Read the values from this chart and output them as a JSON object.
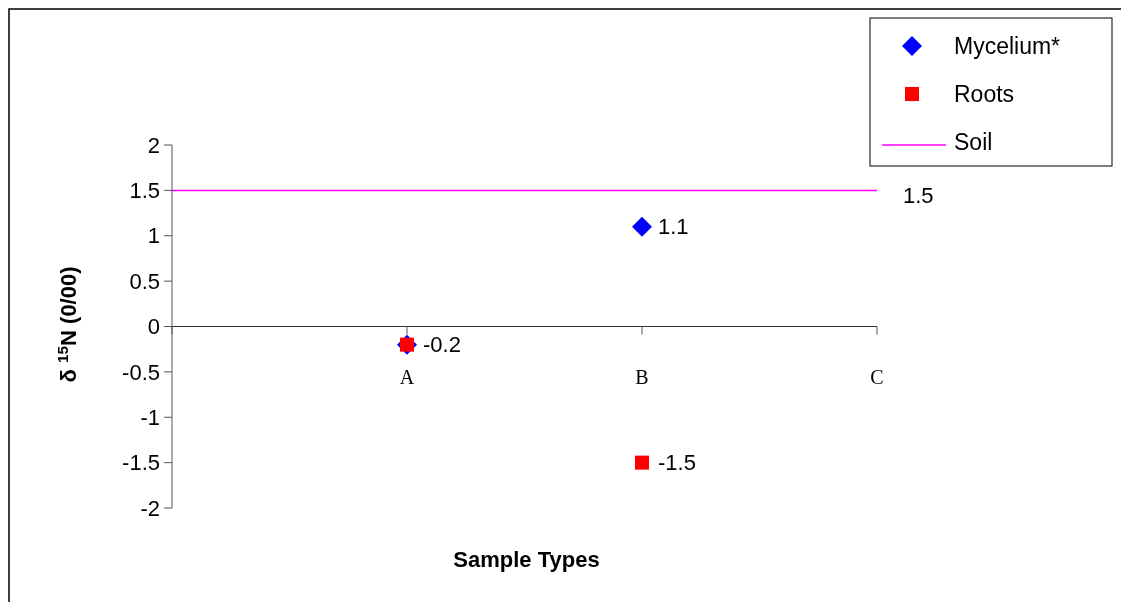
{
  "chart_data": {
    "type": "scatter",
    "xlabel": "Sample Types",
    "ylabel": "δ $^{15}$N (0/00)",
    "categories": [
      null,
      "A",
      "B",
      "C"
    ],
    "series": [
      {
        "name": "Mycelium*",
        "marker": "diamond",
        "color": "#0000ff",
        "values": [
          null,
          -0.2,
          1.1,
          null
        ],
        "value_labels": [
          null,
          "-0.2",
          "1.1",
          null
        ]
      },
      {
        "name": "Roots",
        "marker": "square",
        "color": "#ff0000",
        "values": [
          null,
          -0.2,
          -1.5,
          null
        ],
        "value_labels": [
          null,
          null,
          "-1.5",
          null
        ]
      },
      {
        "name": "Soil",
        "type": "line",
        "marker": "none",
        "color": "#ff00ff",
        "values": [
          1.5,
          1.5,
          1.5,
          1.5
        ],
        "value_labels": [
          null,
          null,
          null,
          "1.5"
        ]
      }
    ],
    "ylim": [
      -2,
      2
    ],
    "yticks": [
      -2,
      -1.5,
      -1,
      -0.5,
      0,
      0.5,
      1,
      1.5,
      2
    ],
    "grid": false,
    "legend": "top right"
  }
}
